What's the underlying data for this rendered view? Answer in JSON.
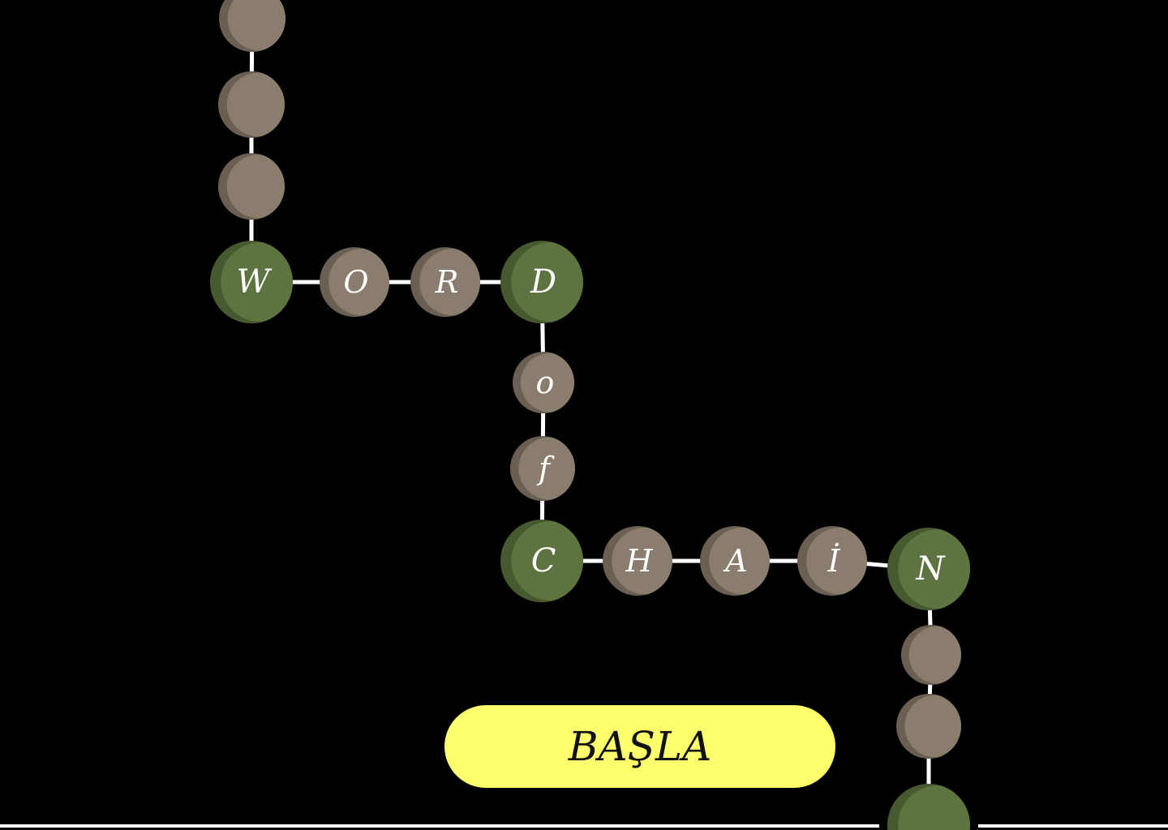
{
  "colors": {
    "background": "#000000",
    "bead_plain": "#8a7d6d",
    "bead_plain_shadow": "#6a5f52",
    "bead_key": "#5e7440",
    "bead_key_shadow": "#475a2f",
    "connector": "#ffffff",
    "letter": "#ffffff",
    "button_fill": "#ffff6e",
    "button_text": "#111111"
  },
  "chain": {
    "beads": [
      {
        "kind": "plain",
        "letter": ""
      },
      {
        "kind": "plain",
        "letter": ""
      },
      {
        "kind": "plain",
        "letter": ""
      },
      {
        "kind": "key",
        "letter": "W"
      },
      {
        "kind": "plain",
        "letter": "O"
      },
      {
        "kind": "plain",
        "letter": "R"
      },
      {
        "kind": "key",
        "letter": "D"
      },
      {
        "kind": "plain",
        "letter": "o"
      },
      {
        "kind": "plain",
        "letter": "f"
      },
      {
        "kind": "key",
        "letter": "C"
      },
      {
        "kind": "plain",
        "letter": "H"
      },
      {
        "kind": "plain",
        "letter": "A"
      },
      {
        "kind": "plain",
        "letter": "İ"
      },
      {
        "kind": "key",
        "letter": "N"
      },
      {
        "kind": "plain",
        "letter": ""
      },
      {
        "kind": "plain",
        "letter": ""
      },
      {
        "kind": "key",
        "letter": ""
      }
    ]
  },
  "start_button": {
    "label": "BAŞLA"
  }
}
